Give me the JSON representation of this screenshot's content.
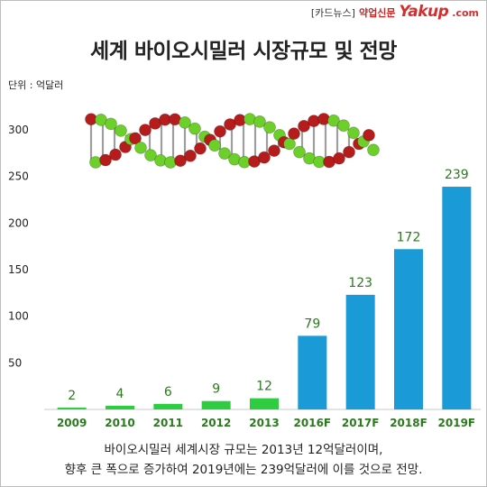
{
  "brand": {
    "tag": "[카드뉴스]",
    "paper": "약업신문",
    "logo": "Yakup",
    "logo_domain": ".com"
  },
  "colors": {
    "actual": "#2ecc40",
    "forecast": "#1a9ad6",
    "actual_label": "#2b7a1e",
    "forecast_label": "#2b7a1e",
    "tick_label_actual": "#2b7a1e",
    "tick_label_forecast": "#2b7a1e",
    "dna_green": "#6ccf2a",
    "dna_red": "#b71c1c"
  },
  "chart_data": {
    "type": "bar",
    "title": "세계 바이오시밀러 시장규모 및 전망",
    "unit_label": "단위 : 억달러",
    "categories": [
      "2009",
      "2010",
      "2011",
      "2012",
      "2013",
      "2016F",
      "2017F",
      "2018F",
      "2019F"
    ],
    "values": [
      2,
      4,
      6,
      9,
      12,
      79,
      123,
      172,
      239
    ],
    "data_labels": [
      "2",
      "4",
      "6",
      "9",
      "12",
      "79",
      "123",
      "172",
      "239"
    ],
    "series_kind": [
      "actual",
      "actual",
      "actual",
      "actual",
      "actual",
      "forecast",
      "forecast",
      "forecast",
      "forecast"
    ],
    "y_ticks": [
      50,
      100,
      150,
      200,
      250,
      300
    ],
    "y_tick_labels": [
      "50",
      "100",
      "150",
      "200",
      "250",
      "300"
    ],
    "ylim": [
      0,
      300
    ],
    "grid": false,
    "legend": "none"
  },
  "caption": {
    "line1": "바이오시밀러 세계시장 규모는 2013년 12억달러이며,",
    "line2": "향후 큰 폭으로 증가하여 2019년에는 239억달러에 이를 것으로 전망."
  }
}
